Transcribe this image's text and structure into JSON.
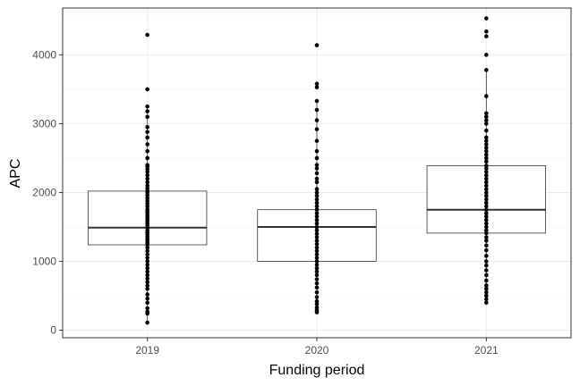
{
  "chart_data": {
    "type": "boxplot",
    "title": "",
    "xlabel": "Funding period",
    "ylabel": "APC",
    "categories": [
      "2019",
      "2020",
      "2021"
    ],
    "ylim": [
      -110,
      4680
    ],
    "yticks": [
      0,
      1000,
      2000,
      3000,
      4000
    ],
    "grid": true,
    "boxes": [
      {
        "category": "2019",
        "lower_hinge": 1240,
        "median": 1490,
        "upper_hinge": 2020,
        "whisker_low": 110,
        "whisker_high": 3250
      },
      {
        "category": "2020",
        "lower_hinge": 1000,
        "median": 1500,
        "upper_hinge": 1750,
        "whisker_low": 260,
        "whisker_high": 3330
      },
      {
        "category": "2021",
        "lower_hinge": 1410,
        "median": 1750,
        "upper_hinge": 2390,
        "whisker_low": 400,
        "whisker_high": 3780
      }
    ],
    "points": [
      {
        "category": "2019",
        "values": [
          110,
          240,
          270,
          320,
          400,
          460,
          520,
          600,
          650,
          700,
          750,
          800,
          850,
          900,
          950,
          1000,
          1050,
          1100,
          1150,
          1200,
          1240,
          1270,
          1300,
          1330,
          1360,
          1390,
          1420,
          1450,
          1490,
          1520,
          1550,
          1580,
          1610,
          1640,
          1670,
          1700,
          1730,
          1760,
          1800,
          1840,
          1880,
          1920,
          1960,
          2000,
          2020,
          2060,
          2100,
          2150,
          2200,
          2250,
          2300,
          2340,
          2380,
          2400,
          2500,
          2600,
          2700,
          2800,
          2880,
          2950,
          3100,
          3180,
          3250,
          3500,
          4290
        ]
      },
      {
        "category": "2020",
        "values": [
          260,
          290,
          330,
          380,
          420,
          480,
          550,
          620,
          680,
          740,
          800,
          850,
          900,
          950,
          1000,
          1050,
          1100,
          1150,
          1200,
          1250,
          1300,
          1350,
          1400,
          1450,
          1500,
          1550,
          1600,
          1650,
          1700,
          1750,
          1800,
          1850,
          1900,
          1950,
          2000,
          2050,
          2150,
          2200,
          2280,
          2350,
          2400,
          2500,
          2600,
          2750,
          2920,
          3050,
          3200,
          3330,
          3530,
          3580,
          4140
        ]
      },
      {
        "category": "2021",
        "values": [
          400,
          450,
          500,
          550,
          600,
          650,
          720,
          800,
          870,
          940,
          1000,
          1080,
          1160,
          1230,
          1300,
          1350,
          1410,
          1450,
          1500,
          1550,
          1600,
          1650,
          1700,
          1750,
          1800,
          1850,
          1900,
          1950,
          2000,
          2050,
          2100,
          2150,
          2200,
          2250,
          2300,
          2350,
          2390,
          2450,
          2500,
          2550,
          2600,
          2650,
          2700,
          2750,
          2800,
          2900,
          3000,
          3050,
          3100,
          3150,
          3400,
          3780,
          4000,
          4270,
          4340,
          4530
        ]
      }
    ]
  }
}
